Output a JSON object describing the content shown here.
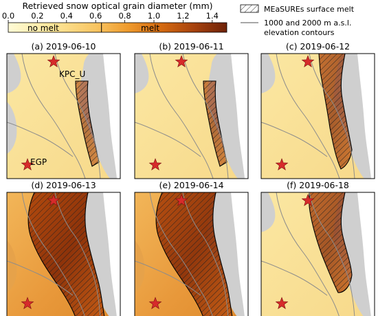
{
  "colorbar": {
    "title": "Retrieved snow optical grain diameter (mm)",
    "ticks": [
      "0.0",
      "0.2",
      "0.4",
      "0.6",
      "0.8",
      "1.0",
      "1.2",
      "1.4"
    ],
    "tick_values": [
      0.0,
      0.2,
      0.4,
      0.6,
      0.8,
      1.0,
      1.2,
      1.4
    ],
    "range": [
      0.0,
      1.5
    ],
    "threshold": 0.64,
    "label_no_melt": "no melt",
    "label_melt": "melt",
    "colors": [
      "#fffbd6",
      "#fde79a",
      "#f8c562",
      "#ee9a2c",
      "#d46a10",
      "#a7420d",
      "#6e2208"
    ]
  },
  "legend": {
    "melt_label": "MEaSUREs surface melt",
    "contour_label_line1": "1000 and 2000 m a.s.l.",
    "contour_label_line2": "elevation contours"
  },
  "panels": [
    {
      "title": "(a) 2019-06-10",
      "stations": [
        "KPC_U",
        "EGP"
      ],
      "melt_intensity": 0.15
    },
    {
      "title": "(b) 2019-06-11",
      "stations": [],
      "melt_intensity": 0.25
    },
    {
      "title": "(c) 2019-06-12",
      "stations": [],
      "melt_intensity": 0.45
    },
    {
      "title": "(d) 2019-06-13",
      "stations": [],
      "melt_intensity": 1.0
    },
    {
      "title": "(e) 2019-06-14",
      "stations": [],
      "melt_intensity": 0.9
    },
    {
      "title": "(f) 2019-06-18",
      "stations": [],
      "melt_intensity": 0.55
    }
  ],
  "chart_data": {
    "type": "heatmap",
    "title": "",
    "colorbar_label": "Retrieved snow optical grain diameter (mm)",
    "colorbar_range": [
      0.0,
      1.5
    ],
    "melt_threshold_mm": 0.64,
    "dates": [
      "2019-06-10",
      "2019-06-11",
      "2019-06-12",
      "2019-06-13",
      "2019-06-14",
      "2019-06-18"
    ],
    "stations": [
      "KPC_U",
      "EGP"
    ],
    "legend": [
      "MEaSUREs surface melt",
      "1000 and 2000 m a.s.l. elevation contours"
    ]
  }
}
